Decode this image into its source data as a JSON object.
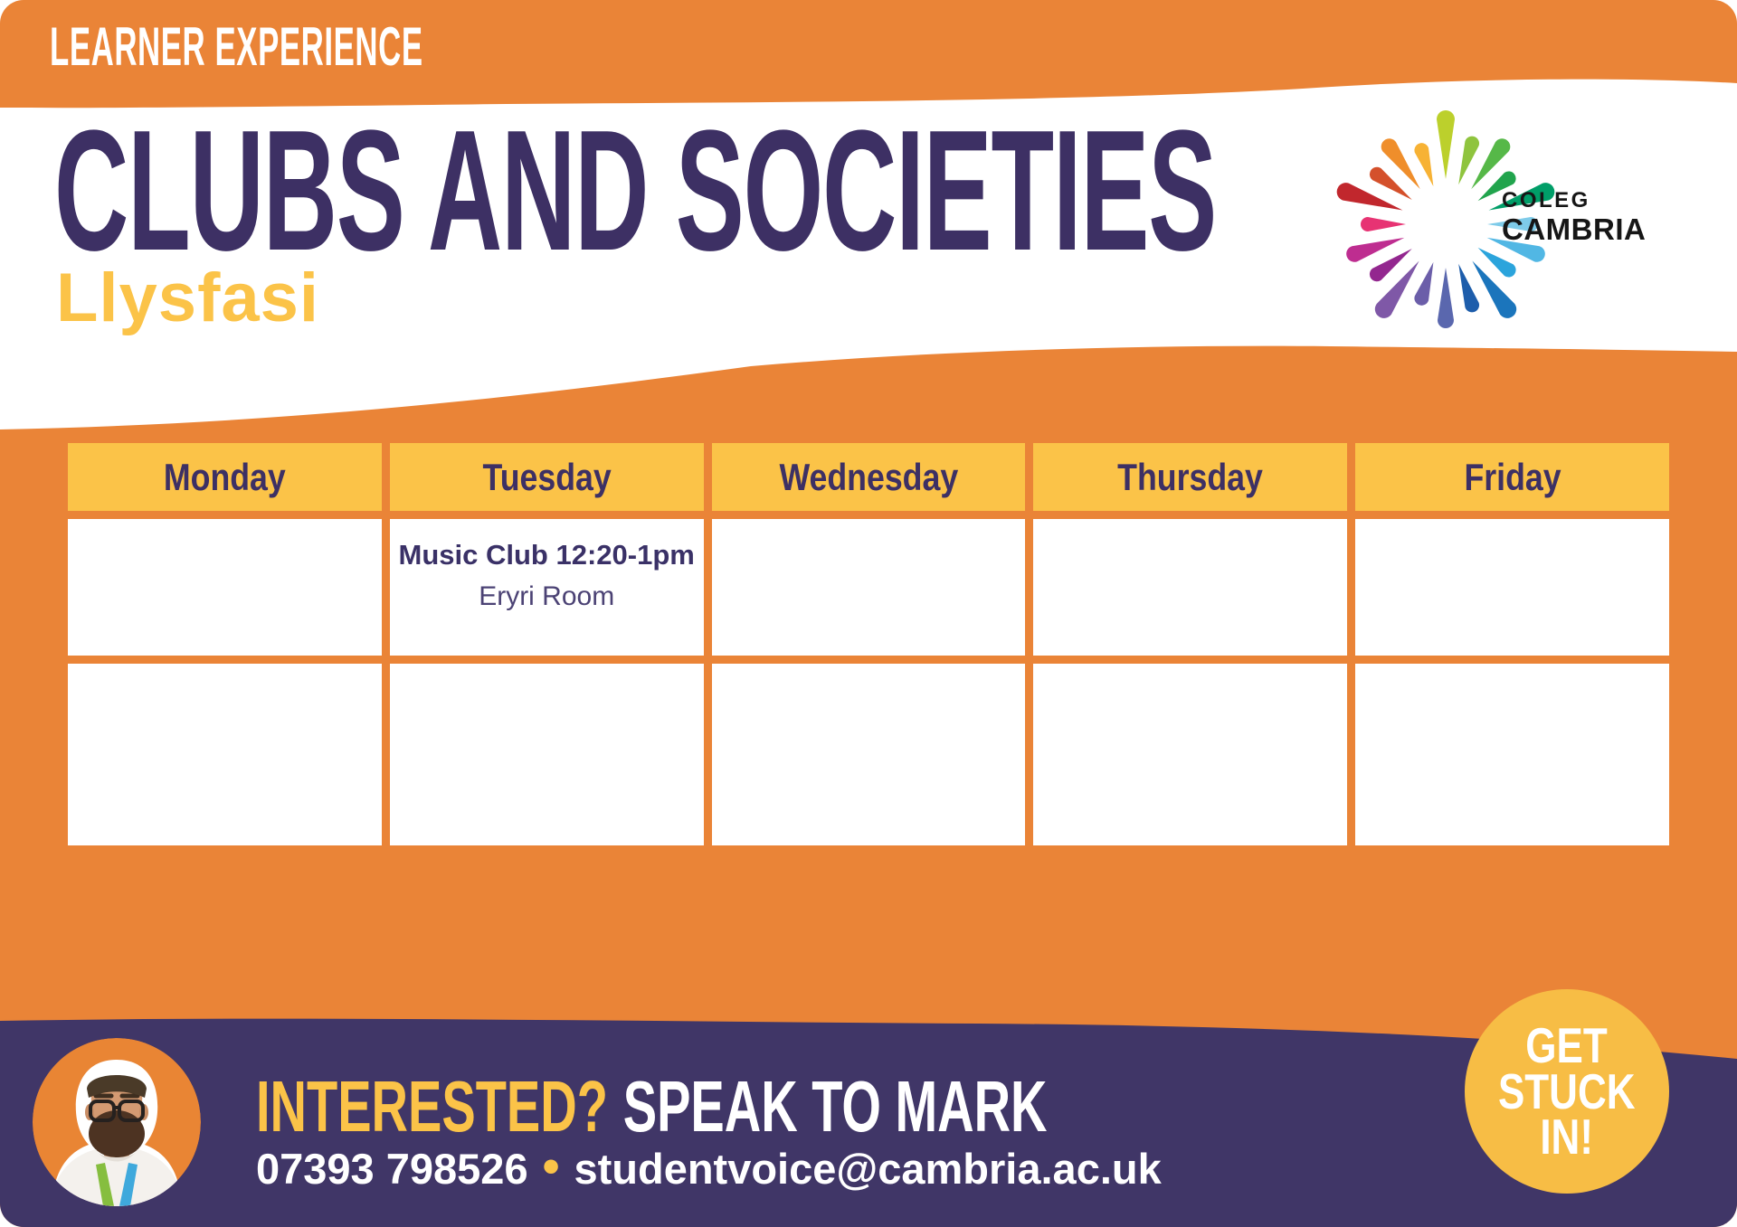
{
  "header": {
    "kicker": "LEARNER EXPERIENCE",
    "title": "CLUBS AND SOCIETIES",
    "subtitle": "Llysfasi"
  },
  "logo": {
    "name": "coleg-cambria-starburst",
    "line1": "COLEG",
    "line2": "CAMBRIA",
    "ray_colors": [
      "#BCD02C",
      "#8FC43E",
      "#56B848",
      "#21A44D",
      "#009E68",
      "#7ECBE9",
      "#51B7E4",
      "#2BA4DC",
      "#1B75BC",
      "#1D5DAB",
      "#5A67AE",
      "#6B5EA9",
      "#7F58A7",
      "#93278F",
      "#BE2D90",
      "#E73373",
      "#C1272D",
      "#D4502B",
      "#EF8E2B",
      "#F7B234"
    ]
  },
  "schedule": {
    "days": [
      "Monday",
      "Tuesday",
      "Wednesday",
      "Thursday",
      "Friday"
    ],
    "event": {
      "day": "Tuesday",
      "title": "Music Club 12:20-1pm",
      "location": "Eryri Room"
    }
  },
  "footer": {
    "interested": "INTERESTED?",
    "speak": "SPEAK TO MARK",
    "phone": "07393 798526",
    "bullet": "•",
    "email": "studentvoice@cambria.ac.uk",
    "badge_lines": [
      "GET",
      "STUCK",
      "IN!"
    ]
  },
  "colors": {
    "orange": "#EA8437",
    "yellow": "#FBC348",
    "badge_yellow": "#F7BD45",
    "title_purple": "#3D3064",
    "footer_purple": "#403667",
    "text_purple": "#3A3167",
    "location_purple": "#4B4274",
    "logo_black": "#161616"
  }
}
